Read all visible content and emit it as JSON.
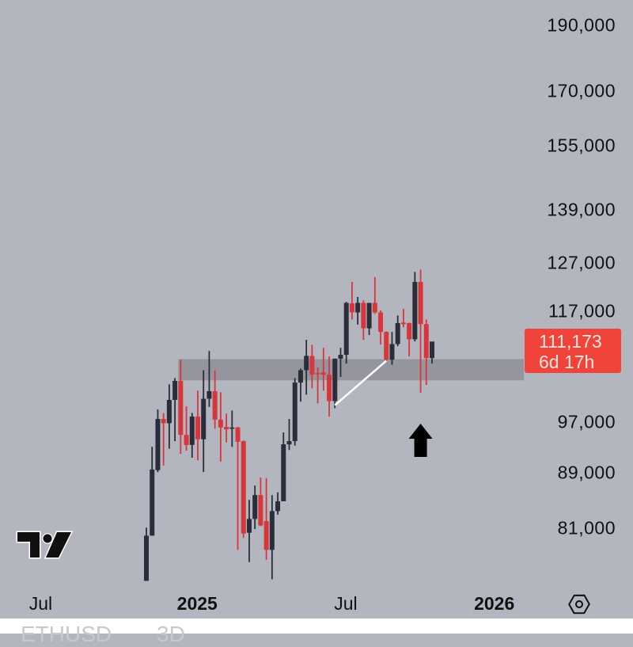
{
  "chart_data": {
    "type": "candlestick",
    "y_scale": "log",
    "ylim": [
      74000,
      190000
    ],
    "y_ticks": [
      190000,
      170000,
      155000,
      139000,
      127000,
      117000,
      97000,
      89000,
      81000
    ],
    "y_tick_labels": [
      "190,000",
      "170,000",
      "155,000",
      "139,000",
      "127,000",
      "117,000",
      "97,000",
      "89,000",
      "81,000"
    ],
    "x_tick_labels": [
      {
        "label": "Jul",
        "bold": false,
        "candle_index": -18.5
      },
      {
        "label": "2025",
        "bold": true,
        "candle_index": 8.9
      },
      {
        "label": "Jul",
        "bold": false,
        "candle_index": 34.9
      },
      {
        "label": "2026",
        "bold": true,
        "candle_index": 60.9
      }
    ],
    "candles": [
      [
        74100,
        81100,
        74100,
        80000
      ],
      [
        80000,
        93000,
        80000,
        89500
      ],
      [
        89400,
        99100,
        89100,
        97500
      ],
      [
        97500,
        98500,
        90100,
        96800
      ],
      [
        96800,
        103400,
        92700,
        100700
      ],
      [
        100700,
        104500,
        93900,
        104000
      ],
      [
        104000,
        107800,
        91900,
        94900
      ],
      [
        94900,
        99600,
        92400,
        93300
      ],
      [
        93300,
        98500,
        91300,
        97900
      ],
      [
        97900,
        102300,
        90900,
        94200
      ],
      [
        94200,
        105900,
        89100,
        100900
      ],
      [
        100900,
        109400,
        99500,
        102200
      ],
      [
        102200,
        105900,
        95900,
        97400
      ],
      [
        97400,
        102000,
        90700,
        96100
      ],
      [
        96200,
        98400,
        93700,
        95800
      ],
      [
        95900,
        98900,
        93000,
        96100
      ],
      [
        96100,
        96200,
        78100,
        93800
      ],
      [
        93900,
        94000,
        79700,
        80300
      ],
      [
        80400,
        85000,
        76500,
        82300
      ],
      [
        82300,
        87100,
        80900,
        85700
      ],
      [
        85700,
        88300,
        81300,
        81400
      ],
      [
        82000,
        88200,
        76800,
        78100
      ],
      [
        78100,
        85700,
        74300,
        83400
      ],
      [
        83400,
        86100,
        82900,
        84800
      ],
      [
        84800,
        95300,
        84800,
        93400
      ],
      [
        93400,
        97500,
        92500,
        93900
      ],
      [
        93900,
        104500,
        93200,
        103700
      ],
      [
        103700,
        106200,
        100400,
        105900
      ],
      [
        105900,
        111500,
        101600,
        108500
      ],
      [
        108500,
        110600,
        102700,
        105100
      ],
      [
        105400,
        106400,
        100100,
        105200
      ],
      [
        105500,
        110000,
        102300,
        105100
      ],
      [
        105100,
        108400,
        97900,
        100500
      ],
      [
        100500,
        108000,
        99300,
        108000
      ],
      [
        108000,
        110000,
        104700,
        108700
      ],
      [
        108700,
        118900,
        107100,
        118700
      ],
      [
        118600,
        123000,
        115400,
        116800
      ],
      [
        116800,
        119900,
        114400,
        118700
      ],
      [
        118700,
        119200,
        111500,
        113700
      ],
      [
        113700,
        118700,
        112400,
        118700
      ],
      [
        118700,
        124000,
        116500,
        116800
      ],
      [
        116800,
        117200,
        110600,
        113000
      ],
      [
        113000,
        113100,
        107500,
        107800
      ],
      [
        107800,
        113000,
        106900,
        110700
      ],
      [
        110700,
        116200,
        110300,
        114700
      ],
      [
        114800,
        117500,
        113900,
        114500
      ],
      [
        114700,
        114800,
        108400,
        111600
      ],
      [
        111600,
        125100,
        111200,
        123000
      ],
      [
        123000,
        125600,
        101900,
        114500
      ],
      [
        114500,
        115400,
        103300,
        108100
      ],
      [
        108100,
        110700,
        107100,
        111173
      ]
    ],
    "candle_fields": [
      "open",
      "high",
      "low",
      "close"
    ],
    "support_zone": {
      "from_candle": 6,
      "low": 104100,
      "high": 107900
    },
    "trendline": {
      "from": {
        "candle": 33,
        "price": 99800
      },
      "to": {
        "candle": 42,
        "price": 107600
      },
      "color": "#ffffff"
    },
    "arrow": {
      "candle": 48,
      "direction": "up",
      "color": "#000000"
    },
    "last_price": {
      "value": 111173,
      "label": "111,173",
      "countdown": "6d 17h"
    },
    "colors": {
      "up": "#2b2e3a",
      "down": "#d9363b",
      "zone": "#8f9097",
      "label_bg": "#f0443a",
      "background": "#b4b6bf"
    }
  },
  "footer": {
    "symbol": "ETHUSD",
    "interval": "3D"
  },
  "logo": "TV",
  "icons": {
    "settings": "hexagon-settings-icon"
  }
}
